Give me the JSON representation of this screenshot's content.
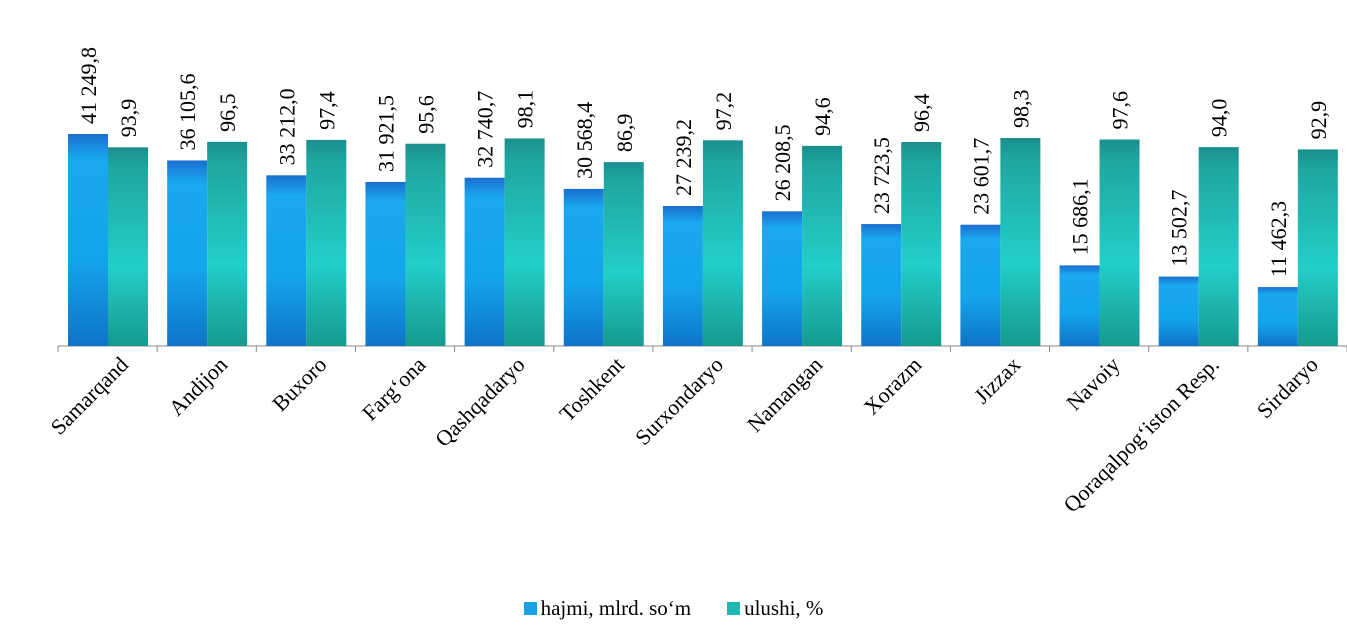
{
  "chart_data": {
    "type": "bar",
    "title": "",
    "categories": [
      "Samarqand",
      "Andijon",
      "Buxoro",
      "Farg‘ona",
      "Qashqadaryo",
      "Toshkent",
      "Surxondaryo",
      "Namangan",
      "Xorazm",
      "Jizzax",
      "Navoiy",
      "Qoraqalpog‘iston Resp.",
      "Sirdaryo"
    ],
    "series": [
      {
        "name": "hajmi, mlrd. so‘m",
        "color": "#1aa0e6",
        "values": [
          41249.8,
          36105.6,
          33212.0,
          31921.5,
          32740.7,
          30568.4,
          27239.2,
          26208.5,
          23723.5,
          23601.7,
          15686.1,
          13502.7,
          11462.3
        ],
        "labels": [
          "41 249,8",
          "36 105,6",
          "33 212,0",
          "31 921,5",
          "32 740,7",
          "30 568,4",
          "27 239,2",
          "26 208,5",
          "23 723,5",
          "23 601,7",
          "15 686,1",
          "13 502,7",
          "11 462,3"
        ]
      },
      {
        "name": "ulushi, %",
        "color": "#1fb8b0",
        "values": [
          93.9,
          96.5,
          97.4,
          95.6,
          98.1,
          86.9,
          97.2,
          94.6,
          96.4,
          98.3,
          97.6,
          94.0,
          92.9
        ],
        "labels": [
          "93,9",
          "96,5",
          "97,4",
          "95,6",
          "98,1",
          "86,9",
          "97,2",
          "94,6",
          "96,4",
          "98,3",
          "97,6",
          "94,0",
          "92,9"
        ]
      }
    ],
    "legend_position": "bottom",
    "grid": false
  }
}
